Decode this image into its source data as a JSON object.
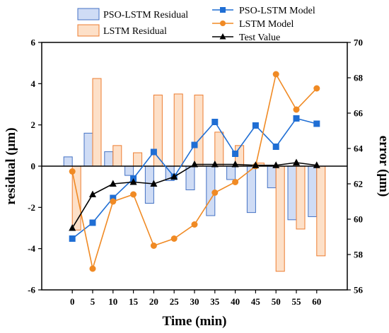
{
  "chart_data": {
    "type": "bar+line",
    "x": [
      0,
      5,
      10,
      15,
      20,
      25,
      30,
      35,
      40,
      45,
      50,
      55,
      60
    ],
    "xlabel": "Time (min)",
    "ylabel_left": "residual (μm)",
    "ylabel_right": "error (μm)",
    "ylim_left": [
      -6,
      6
    ],
    "ylim_right": [
      56,
      70
    ],
    "yticks_left": [
      -6,
      -4,
      -2,
      0,
      2,
      4,
      6
    ],
    "yticks_right": [
      56,
      58,
      60,
      62,
      64,
      66,
      68,
      70
    ],
    "grid": false,
    "legend_placement": "top",
    "bar_series": [
      {
        "name": "PSO-LSTM Residual",
        "color": "#4472c4",
        "fill": "#cfdcf5",
        "values": [
          0.45,
          1.6,
          0.7,
          -0.45,
          -1.8,
          -0.7,
          -1.15,
          -2.4,
          -0.65,
          -2.25,
          -1.05,
          -2.6,
          -2.45
        ]
      },
      {
        "name": "LSTM Residual",
        "color": "#ed7d31",
        "fill": "#fde0c8",
        "values": [
          -3.1,
          4.25,
          1.0,
          0.65,
          3.45,
          3.5,
          3.45,
          1.65,
          1.0,
          0.15,
          -5.1,
          -3.05,
          -4.35
        ]
      }
    ],
    "line_series": [
      {
        "name": "PSO-LSTM Model",
        "color": "#1f6ed4",
        "marker": "square",
        "values": [
          58.9,
          59.8,
          61.2,
          62.3,
          63.8,
          62.4,
          64.2,
          65.5,
          63.7,
          65.3,
          64.1,
          65.7,
          65.4
        ]
      },
      {
        "name": "LSTM Model",
        "color": "#f08a24",
        "marker": "circle",
        "values": [
          62.7,
          57.2,
          61.0,
          61.4,
          58.5,
          58.9,
          59.7,
          61.5,
          62.1,
          63.0,
          68.2,
          66.2,
          67.4
        ]
      },
      {
        "name": "Test Value",
        "color": "#000000",
        "marker": "triangle",
        "values": [
          59.5,
          61.4,
          62.0,
          62.1,
          62.0,
          62.4,
          63.1,
          63.1,
          63.1,
          63.05,
          63.05,
          63.2,
          63.05
        ]
      }
    ]
  }
}
